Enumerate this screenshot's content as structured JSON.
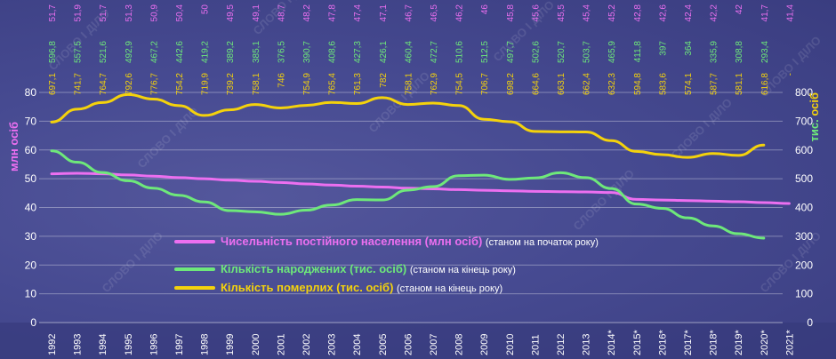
{
  "colors": {
    "population": "#ec6ff0",
    "births": "#6ee87a",
    "deaths": "#f4d20c",
    "grid": "#ffffff",
    "background": "#464a91",
    "watermark": "#ffffff"
  },
  "watermark": "СЛОВО І ДІЛО",
  "chart_data": {
    "type": "line",
    "x": [
      "1992",
      "1993",
      "1994",
      "1995",
      "1996",
      "1997",
      "1998",
      "1999",
      "2000",
      "2001",
      "2002",
      "2003",
      "2004",
      "2005",
      "2006",
      "2007",
      "2008",
      "2009",
      "2010",
      "2011",
      "2012",
      "2013",
      "2014*",
      "2015*",
      "2016*",
      "2017*",
      "2018*",
      "2019*",
      "2020*",
      "2021*"
    ],
    "left_axis": {
      "label": "млн осіб",
      "ticks": [
        "0",
        "10",
        "20",
        "30",
        "40",
        "50",
        "60",
        "70",
        "80",
        "90"
      ],
      "range": [
        0,
        90
      ]
    },
    "right_axis": {
      "label": "тис. осіб",
      "ticks": [
        "0",
        "100",
        "200",
        "300",
        "400",
        "500",
        "600",
        "700",
        "800"
      ],
      "range": [
        0,
        900
      ]
    },
    "grid": true,
    "legend_position": "center",
    "series": [
      {
        "key": "population",
        "name": "Чисельність постійного населення (млн осіб)",
        "note": "(станом на початок року)",
        "axis": "left",
        "values": [
          51.7,
          51.9,
          51.7,
          51.3,
          50.9,
          50.4,
          50,
          49.5,
          49.1,
          48.7,
          48.2,
          47.8,
          47.4,
          47.1,
          46.7,
          46.5,
          46.2,
          46,
          45.8,
          45.6,
          45.5,
          45.4,
          45.2,
          42.8,
          42.6,
          42.4,
          42.2,
          42,
          41.7,
          41.4
        ],
        "labels": [
          "51,7",
          "51,9",
          "51,7",
          "51,3",
          "50,9",
          "50,4",
          "50",
          "49,5",
          "49,1",
          "48,7",
          "48,2",
          "47,8",
          "47,4",
          "47,1",
          "46,7",
          "46,5",
          "46,2",
          "46",
          "45,8",
          "45,6",
          "45,5",
          "45,4",
          "45,2",
          "42,8",
          "42,6",
          "42,4",
          "42,2",
          "42",
          "41,7",
          "41,4"
        ]
      },
      {
        "key": "births",
        "name": "Кількість народжених (тис. осіб)",
        "note": "(станом на кінець року)",
        "axis": "right",
        "values": [
          596.8,
          557.5,
          521.6,
          492.9,
          467.2,
          442.6,
          419.2,
          389.2,
          385.1,
          376.5,
          390.7,
          408.6,
          427.3,
          426.1,
          460.4,
          472.7,
          510.6,
          512.5,
          497.7,
          502.6,
          520.7,
          503.7,
          465.9,
          411.8,
          397,
          364,
          335.9,
          308.8,
          293.4,
          null
        ],
        "labels": [
          "596,8",
          "557,5",
          "521,6",
          "492,9",
          "467,2",
          "442,6",
          "419,2",
          "389,2",
          "385,1",
          "376,5",
          "390,7",
          "408,6",
          "427,3",
          "426,1",
          "460,4",
          "472,7",
          "510,6",
          "512,5",
          "497,7",
          "502,6",
          "520,7",
          "503,7",
          "465,9",
          "411,8",
          "397",
          "364",
          "335,9",
          "308,8",
          "293,4",
          ""
        ]
      },
      {
        "key": "deaths",
        "name": "Кількість померлих (тис. осіб)",
        "note": "(станом на кінець року)",
        "axis": "right",
        "values": [
          697.1,
          741.7,
          764.7,
          792.6,
          776.7,
          754.2,
          719.9,
          739.2,
          758.1,
          746,
          754.9,
          765.4,
          761.3,
          782,
          758.1,
          762.9,
          754.5,
          706.7,
          698.2,
          664.6,
          663.1,
          662.4,
          632.3,
          594.8,
          583.6,
          574.1,
          587.7,
          581.1,
          616.8,
          null
        ],
        "labels": [
          "697,1",
          "741,7",
          "764,7",
          "792,6",
          "776,7",
          "754,2",
          "719,9",
          "739,2",
          "758,1",
          "746",
          "754,9",
          "765,4",
          "761,3",
          "782",
          "758,1",
          "762,9",
          "754,5",
          "706,7",
          "698,2",
          "664,6",
          "663,1",
          "662,4",
          "632,3",
          "594,8",
          "583,6",
          "574,1",
          "587,7",
          "581,1",
          "616,8",
          "-"
        ]
      }
    ]
  }
}
